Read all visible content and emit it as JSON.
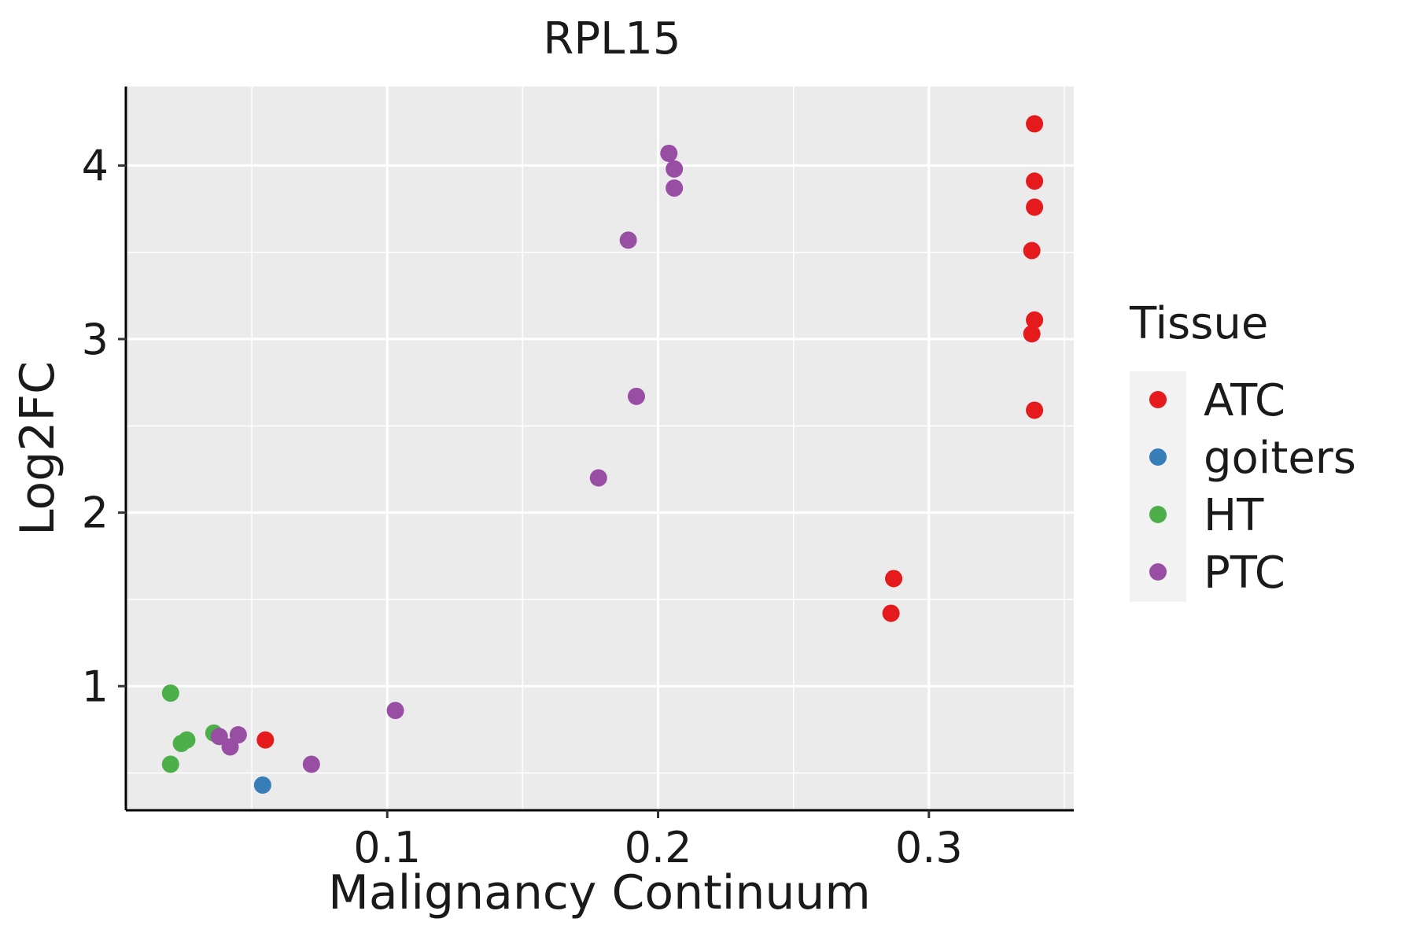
{
  "chart_data": {
    "type": "scatter",
    "title": "RPL15",
    "xlabel": "Malignancy Continuum",
    "ylabel": "Log2FC",
    "xlim": [
      0.0035,
      0.3535
    ],
    "ylim": [
      0.285,
      4.455
    ],
    "x_ticks": [
      0.1,
      0.2,
      0.3
    ],
    "x_tick_labels": [
      "0.1",
      "0.2",
      "0.3"
    ],
    "y_ticks": [
      1,
      2,
      3,
      4
    ],
    "y_tick_labels": [
      "1",
      "2",
      "3",
      "4"
    ],
    "grid": true,
    "legend": {
      "title": "Tissue",
      "position": "right"
    },
    "series": [
      {
        "name": "ATC",
        "color": "#e41a1c",
        "points": [
          {
            "x": 0.339,
            "y": 4.24
          },
          {
            "x": 0.339,
            "y": 3.91
          },
          {
            "x": 0.339,
            "y": 3.76
          },
          {
            "x": 0.338,
            "y": 3.51
          },
          {
            "x": 0.339,
            "y": 3.11
          },
          {
            "x": 0.338,
            "y": 3.03
          },
          {
            "x": 0.339,
            "y": 2.59
          },
          {
            "x": 0.287,
            "y": 1.62
          },
          {
            "x": 0.286,
            "y": 1.42
          },
          {
            "x": 0.055,
            "y": 0.69
          }
        ]
      },
      {
        "name": "goiters",
        "color": "#377eb8",
        "points": [
          {
            "x": 0.054,
            "y": 0.43
          }
        ]
      },
      {
        "name": "HT",
        "color": "#4daf4a",
        "points": [
          {
            "x": 0.02,
            "y": 0.96
          },
          {
            "x": 0.036,
            "y": 0.73
          },
          {
            "x": 0.026,
            "y": 0.69
          },
          {
            "x": 0.024,
            "y": 0.67
          },
          {
            "x": 0.02,
            "y": 0.55
          }
        ]
      },
      {
        "name": "PTC",
        "color": "#984ea3",
        "points": [
          {
            "x": 0.204,
            "y": 4.07
          },
          {
            "x": 0.206,
            "y": 3.98
          },
          {
            "x": 0.206,
            "y": 3.87
          },
          {
            "x": 0.189,
            "y": 3.57
          },
          {
            "x": 0.192,
            "y": 2.67
          },
          {
            "x": 0.178,
            "y": 2.2
          },
          {
            "x": 0.103,
            "y": 0.86
          },
          {
            "x": 0.045,
            "y": 0.72
          },
          {
            "x": 0.038,
            "y": 0.71
          },
          {
            "x": 0.042,
            "y": 0.65
          },
          {
            "x": 0.072,
            "y": 0.55
          }
        ]
      }
    ]
  }
}
